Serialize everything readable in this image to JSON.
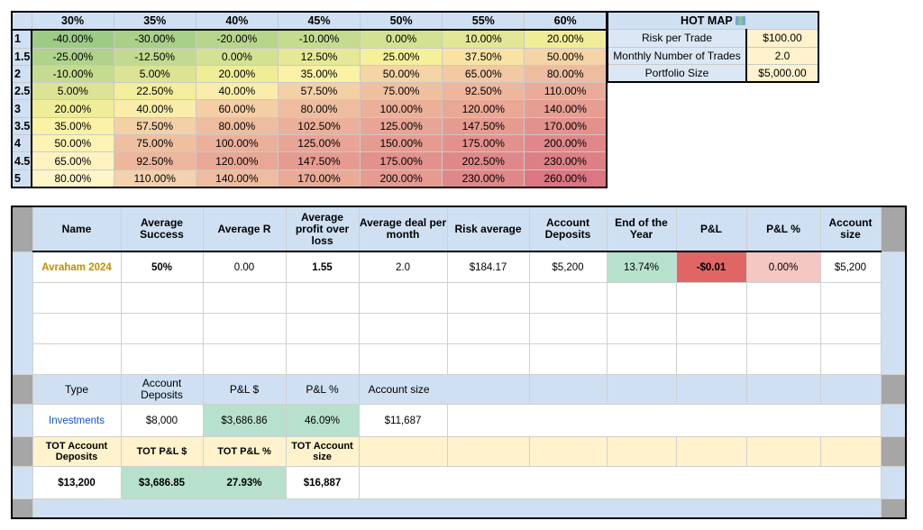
{
  "heatmap": {
    "columns": [
      "30%",
      "35%",
      "40%",
      "45%",
      "50%",
      "55%",
      "60%"
    ],
    "rows": [
      {
        "r": "1",
        "cells": [
          "-40.00%",
          "-30.00%",
          "-20.00%",
          "-10.00%",
          "0.00%",
          "10.00%",
          "20.00%"
        ],
        "colors": [
          "#9ccb86",
          "#a9cf89",
          "#b7d58c",
          "#c5db8f",
          "#d3e292",
          "#e1e795",
          "#efed98"
        ]
      },
      {
        "r": "1.5",
        "cells": [
          "-25.00%",
          "-12.50%",
          "0.00%",
          "12.50%",
          "25.00%",
          "37.50%",
          "50.00%"
        ],
        "colors": [
          "#b0d28b",
          "#c2da8f",
          "#d3e292",
          "#e5e996",
          "#f7f09b",
          "#f8e3a2",
          "#f5d4a6"
        ]
      },
      {
        "r": "2",
        "cells": [
          "-10.00%",
          "5.00%",
          "20.00%",
          "35.00%",
          "50.00%",
          "65.00%",
          "80.00%"
        ],
        "colors": [
          "#c5db8f",
          "#dae494",
          "#efed98",
          "#fbf1a7",
          "#f5d4a6",
          "#f2c9a3",
          "#eebd9f"
        ]
      },
      {
        "r": "2.5",
        "cells": [
          "5.00%",
          "22.50%",
          "40.00%",
          "57.50%",
          "75.00%",
          "92.50%",
          "110.00%"
        ],
        "colors": [
          "#dae494",
          "#f3ee9a",
          "#f9eda9",
          "#f4d0a6",
          "#efc0a0",
          "#edb69d",
          "#eaac99"
        ]
      },
      {
        "r": "3",
        "cells": [
          "20.00%",
          "40.00%",
          "60.00%",
          "80.00%",
          "100.00%",
          "120.00%",
          "140.00%"
        ],
        "colors": [
          "#efed98",
          "#f9eda9",
          "#f4cea6",
          "#eebd9f",
          "#ebb09a",
          "#e9a796",
          "#e69e93"
        ]
      },
      {
        "r": "3.5",
        "cells": [
          "35.00%",
          "57.50%",
          "80.00%",
          "102.50%",
          "125.00%",
          "147.50%",
          "170.00%"
        ],
        "colors": [
          "#fbf1a7",
          "#f4d0a6",
          "#eebd9f",
          "#ebb09a",
          "#e8a495",
          "#e69b91",
          "#e3918d"
        ]
      },
      {
        "r": "4",
        "cells": [
          "50.00%",
          "75.00%",
          "100.00%",
          "125.00%",
          "150.00%",
          "175.00%",
          "200.00%"
        ],
        "colors": [
          "#fdf3b4",
          "#efc0a0",
          "#ebb09a",
          "#e8a495",
          "#e69b91",
          "#e3918d",
          "#e08889"
        ]
      },
      {
        "r": "4.5",
        "cells": [
          "65.00%",
          "92.50%",
          "120.00%",
          "147.50%",
          "175.00%",
          "202.50%",
          "230.00%"
        ],
        "colors": [
          "#fdf3c0",
          "#edb69d",
          "#e9a796",
          "#e69b91",
          "#e3918d",
          "#e08889",
          "#de7f85"
        ]
      },
      {
        "r": "5",
        "cells": [
          "80.00%",
          "110.00%",
          "140.00%",
          "170.00%",
          "200.00%",
          "230.00%",
          "260.00%"
        ],
        "colors": [
          "#fef5c8",
          "#f3d2ad",
          "#eebd9f",
          "#e9ab98",
          "#e69b91",
          "#e08889",
          "#db7682"
        ]
      }
    ]
  },
  "settings": {
    "title": "HOT MAP",
    "title_icon": "map-emoji-icon",
    "risk_label": "Risk per Trade",
    "risk_value": "$100.00",
    "trades_label": "Monthly Number of Trades",
    "trades_value": "2.0",
    "portfolio_label": "Portfolio Size",
    "portfolio_value": "$5,000.00"
  },
  "tracker": {
    "headers": [
      "Name",
      "Average Success",
      "Average R",
      "Average profit over loss",
      "Average deal per month",
      "Risk average",
      "Account Deposits",
      "End of the Year",
      "P&L",
      "P&L %",
      "Account size"
    ],
    "row": [
      "Avraham 2024",
      "50%",
      "0.00",
      "1.55",
      "2.0",
      "$184.17",
      "$5,200",
      "13.74%",
      "-$0.01",
      "0.00%",
      "$5,200"
    ]
  },
  "summary": {
    "headers": [
      "Type",
      "Account Deposits",
      "P&L $",
      "P&L %",
      "Account size"
    ],
    "row": [
      "Investments",
      "$8,000",
      "$3,686.86",
      "46.09%",
      "$11,687"
    ]
  },
  "totals": {
    "headers": [
      "TOT Account Deposits",
      "TOT P&L $",
      "TOT P&L %",
      "TOT Account size"
    ],
    "row": [
      "$13,200",
      "$3,686.85",
      "27.93%",
      "$16,887"
    ]
  },
  "colors": {
    "header_blue": "#cfe0f3",
    "settings_yellow": "#fff2cc",
    "positive_green": "#b7e1cd",
    "negative_red": "#e06666",
    "zero_pink": "#f4c7c3",
    "name_gold": "#bf9000",
    "link_blue": "#1155cc"
  }
}
